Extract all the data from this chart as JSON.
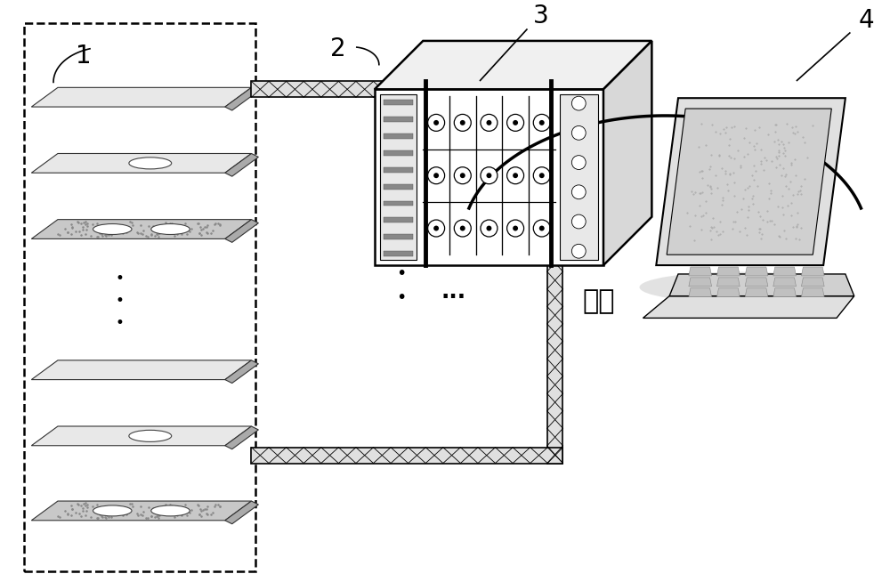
{
  "bg_color": "#ffffff",
  "label1": "1",
  "label2": "2",
  "label3": "3",
  "label4": "4",
  "comm_label": "通信",
  "dots3": "...",
  "vert_dots": "•\n•\n•"
}
